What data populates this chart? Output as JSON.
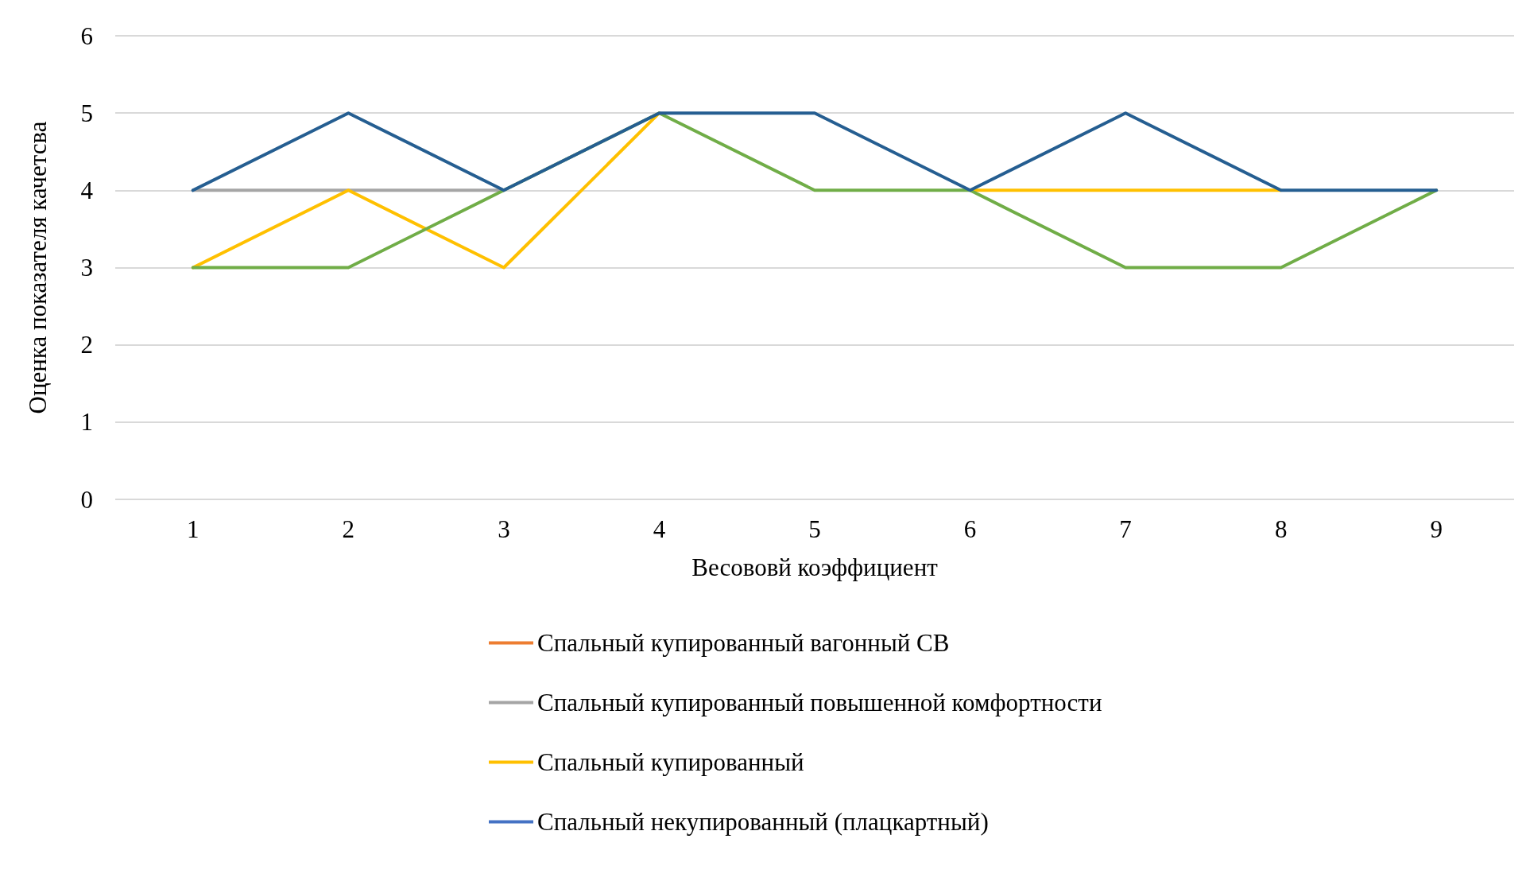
{
  "chart_data": {
    "type": "line",
    "xlabel": "Весововй коэффициент",
    "ylabel": "Оценка показателя качетсва",
    "categories": [
      "1",
      "2",
      "3",
      "4",
      "5",
      "6",
      "7",
      "8",
      "9"
    ],
    "ylim": [
      0,
      6
    ],
    "yticks": [
      0,
      1,
      2,
      3,
      4,
      5,
      6
    ],
    "grid": "y",
    "legend": "bottom",
    "marker": "none",
    "series": [
      {
        "name": "Спальный купированный вагонный СВ",
        "color": "#ed7d31",
        "values": [
          null,
          null,
          null,
          null,
          null,
          null,
          null,
          null,
          null
        ]
      },
      {
        "name": "Спальный купированный повышенной комфортности",
        "color": "#a5a5a5",
        "values": [
          4,
          4,
          4,
          null,
          null,
          null,
          null,
          null,
          null
        ]
      },
      {
        "name": "Спальный купированный",
        "color": "#ffc000",
        "values": [
          3,
          4,
          3,
          5,
          null,
          4,
          4,
          4,
          null
        ]
      },
      {
        "name": "Спальный некупированный (плацкартный)",
        "color": "#4472c4",
        "values": [
          null,
          null,
          null,
          null,
          null,
          null,
          null,
          null,
          null
        ]
      },
      {
        "color": "#70ad47",
        "values": [
          3,
          3,
          4,
          5,
          4,
          4,
          3,
          3,
          4
        ]
      },
      {
        "color": "#255e91",
        "values": [
          4,
          5,
          4,
          5,
          5,
          4,
          5,
          4,
          4
        ]
      }
    ]
  }
}
